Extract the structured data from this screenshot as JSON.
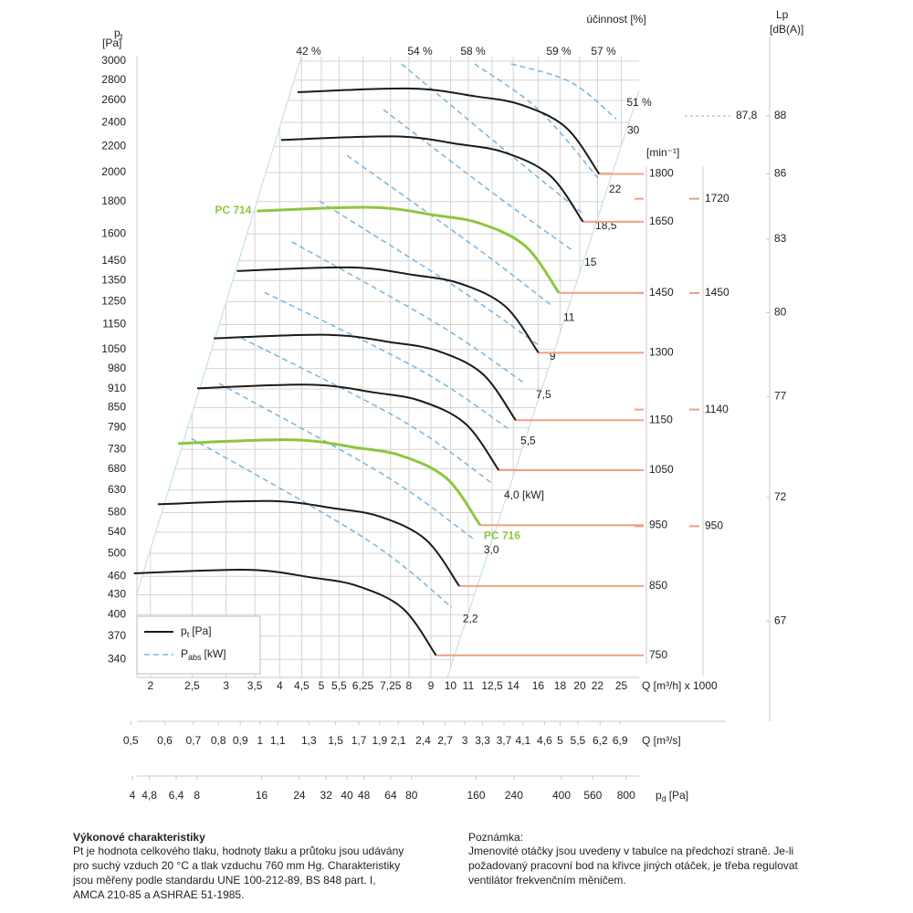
{
  "chart_data": {
    "type": "line",
    "y_label": {
      "symbol": "p",
      "sub": "t",
      "unit": "[Pa]"
    },
    "log_scale": true,
    "grid": true,
    "ylim": [
      310,
      3050
    ],
    "yticks": [
      3000,
      2800,
      2600,
      2400,
      2200,
      2000,
      1800,
      1600,
      1450,
      1350,
      1250,
      1150,
      1050,
      980,
      910,
      850,
      790,
      730,
      680,
      630,
      580,
      540,
      500,
      460,
      430,
      400,
      370,
      340
    ],
    "xlim": [
      1.86,
      27.5
    ],
    "x_label": "Q [m³/h] x 1000",
    "xticks": [
      2,
      {
        "value": 2.5,
        "label": "2,5"
      },
      3,
      {
        "value": 3.5,
        "label": "3,5"
      },
      4,
      {
        "value": 4.5,
        "label": "4,5"
      },
      5,
      {
        "value": 5.5,
        "label": "5,5"
      },
      {
        "value": 6.25,
        "label": "6,25"
      },
      {
        "value": 7.25,
        "label": "7,25"
      },
      8,
      9,
      10,
      11,
      {
        "value": 12.5,
        "label": "12,5"
      },
      14,
      16,
      18,
      20,
      22,
      25
    ],
    "x2_label": "Q [m³/s]",
    "x2lim": [
      0.517,
      7.64
    ],
    "x2ticks": [
      {
        "value": 0.5,
        "label": "0,5"
      },
      {
        "value": 0.6,
        "label": "0,6"
      },
      {
        "value": 0.7,
        "label": "0,7"
      },
      {
        "value": 0.8,
        "label": "0,8"
      },
      {
        "value": 0.9,
        "label": "0,9"
      },
      1,
      {
        "value": 1.1,
        "label": "1,1"
      },
      {
        "value": 1.3,
        "label": "1,3"
      },
      {
        "value": 1.5,
        "label": "1,5"
      },
      {
        "value": 1.7,
        "label": "1,7"
      },
      {
        "value": 1.9,
        "label": "1,9"
      },
      {
        "value": 2.1,
        "label": "2,1"
      },
      {
        "value": 2.4,
        "label": "2,4"
      },
      {
        "value": 2.7,
        "label": "2,7"
      },
      3,
      {
        "value": 3.3,
        "label": "3,3"
      },
      {
        "value": 3.7,
        "label": "3,7"
      },
      {
        "value": 4.1,
        "label": "4,1"
      },
      {
        "value": 4.6,
        "label": "4,6"
      },
      5,
      {
        "value": 5.5,
        "label": "5,5"
      },
      {
        "value": 6.2,
        "label": "6,2"
      },
      {
        "value": 6.9,
        "label": "6,9"
      }
    ],
    "x3_label": {
      "symbol": "p",
      "sub": "d",
      "unit": "[Pa]"
    },
    "x3lim": [
      4.2,
      920
    ],
    "x3ticks": [
      4,
      {
        "value": 4.8,
        "label": "4,8"
      },
      {
        "value": 6.4,
        "label": "6,4"
      },
      8,
      16,
      24,
      32,
      40,
      48,
      64,
      80,
      160,
      240,
      400,
      560,
      800
    ],
    "series": [
      {
        "name": "1800",
        "color": "#1a1a1a",
        "x": [
          4.4,
          8.1,
          11.4,
          14.6,
          18.6,
          22.2
        ],
        "values": [
          2680,
          2715,
          2640,
          2560,
          2355,
          1990
        ]
      },
      {
        "name": "1650",
        "color": "#1a1a1a",
        "x": [
          4.03,
          7.43,
          10.45,
          13.38,
          17.05,
          20.35
        ],
        "values": [
          2252,
          2281,
          2218,
          2151,
          1979,
          1672
        ]
      },
      {
        "name": "1450",
        "label": "PC 714",
        "color": "#8dc63f",
        "x": [
          3.54,
          6.53,
          9.18,
          11.76,
          14.98,
          17.88
        ],
        "values": [
          1739,
          1762,
          1713,
          1661,
          1528,
          1291
        ]
      },
      {
        "name": "1300",
        "color": "#1a1a1a",
        "x": [
          3.18,
          5.85,
          8.23,
          10.54,
          13.43,
          16.03
        ],
        "values": [
          1398,
          1416,
          1377,
          1335,
          1228,
          1038
        ]
      },
      {
        "name": "1150",
        "color": "#1a1a1a",
        "x": [
          2.81,
          5.18,
          7.28,
          9.33,
          11.88,
          14.18
        ],
        "values": [
          1094,
          1108,
          1078,
          1045,
          961,
          812
        ]
      },
      {
        "name": "1050",
        "color": "#1a1a1a",
        "x": [
          2.57,
          4.72,
          6.65,
          8.52,
          10.85,
          12.95
        ],
        "values": [
          912,
          924,
          898,
          871,
          801,
          677
        ]
      },
      {
        "name": "950",
        "label": "PC 716",
        "color": "#8dc63f",
        "x": [
          2.32,
          4.28,
          6.02,
          7.71,
          9.82,
          11.72
        ],
        "values": [
          746,
          756,
          735,
          713,
          656,
          554
        ]
      },
      {
        "name": "850",
        "color": "#1a1a1a",
        "x": [
          2.08,
          3.82,
          5.38,
          6.89,
          8.78,
          10.48
        ],
        "values": [
          598,
          605,
          589,
          571,
          525,
          444
        ]
      },
      {
        "name": "750",
        "color": "#1a1a1a",
        "x": [
          1.83,
          3.38,
          4.75,
          6.08,
          7.75,
          9.25
        ],
        "values": [
          465,
          471,
          458,
          444,
          409,
          345
        ]
      }
    ],
    "power_curves": [
      {
        "name": "30",
        "color": "#7fb8e0",
        "x": [
          13.85,
          19.04,
          24.33
        ],
        "values": [
          2970,
          2780,
          2431
        ]
      },
      {
        "name": "22",
        "color": "#7fb8e0",
        "x": [
          11.38,
          16.04,
          22.06
        ],
        "values": [
          2970,
          2514,
          1960
        ]
      },
      {
        "name": "18,5",
        "color": "#7fb8e0",
        "x": [
          7.69,
          13.85,
          20.5
        ],
        "values": [
          2970,
          2128,
          1716
        ]
      },
      {
        "name": "15",
        "color": "#7fb8e0",
        "x": [
          6.98,
          12.87,
          19.33
        ],
        "values": [
          2514,
          1833,
          1503
        ]
      },
      {
        "name": "11",
        "color": "#7fb8e0",
        "x": [
          5.74,
          11.38,
          17.27
        ],
        "values": [
          2128,
          1528,
          1230
        ]
      },
      {
        "name": "9",
        "color": "#7fb8e0",
        "x": [
          4.95,
          10.33,
          16.04
        ],
        "values": [
          1803,
          1316,
          1067
        ]
      },
      {
        "name": "7,5",
        "color": "#7fb8e0",
        "x": [
          4.27,
          9.36,
          14.91
        ],
        "values": [
          1554,
          1151,
          928
        ]
      },
      {
        "name": "5,5",
        "color": "#7fb8e0",
        "x": [
          3.69,
          8.49,
          13.72
        ],
        "values": [
          1293,
          975,
          785
        ]
      },
      {
        "name": "4,0 [kW]",
        "color": "#7fb8e0",
        "x": [
          3.26,
          7.69,
          12.56
        ],
        "values": [
          1095,
          812,
          644
        ]
      },
      {
        "name": "3,0",
        "color": "#7fb8e0",
        "x": [
          2.89,
          6.98,
          11.27
        ],
        "values": [
          928,
          666,
          528
        ]
      },
      {
        "name": "2,2",
        "color": "#7fb8e0",
        "x": [
          2.49,
          6.32,
          10.07
        ],
        "values": [
          760,
          528,
          411
        ]
      }
    ],
    "efficiency_title": "účinnost [%]",
    "efficiency_labels": [
      "42 %",
      "54 %",
      "58 %",
      "59 %",
      "57 %",
      "51 %"
    ],
    "rpm_unit": "[min⁻¹]",
    "rpm2": [
      {
        "value": 1720,
        "pt": 1818
      },
      {
        "value": 1450,
        "pt": 1290
      },
      {
        "value": 1140,
        "pt": 844
      },
      {
        "value": 950,
        "pt": 552
      }
    ],
    "lp": {
      "label": "Lp",
      "unit": "[dB(A)]",
      "ticks": [
        {
          "value": 88,
          "pt": 2457
        },
        {
          "value": 86,
          "pt": 1990
        },
        {
          "value": 83,
          "pt": 1570
        },
        {
          "value": 80,
          "pt": 1201
        },
        {
          "value": 77,
          "pt": 885
        },
        {
          "value": 72,
          "pt": 613
        },
        {
          "value": 67,
          "pt": 391
        }
      ],
      "marker": {
        "value": 87.8,
        "label": "87,8",
        "pt": 2457
      }
    },
    "legend": [
      {
        "symbol": "p",
        "sub": "t",
        "unit": "[Pa]"
      },
      {
        "symbol": "P",
        "sub": "abs",
        "unit": "[kW]"
      }
    ]
  },
  "notes": {
    "left": {
      "title": "Výkonové charakteristiky",
      "lines": [
        "Pt je hodnota celkového tlaku, hodnoty tlaku a průtoku jsou udávány",
        "pro suchý vzduch 20 °C a tlak vzduchu 760 mm Hg. Charakteristiky",
        "jsou měřeny podle standardu UNE 100-212-89, BS 848 part. I,",
        "AMCA 210-85 a ASHRAE 51-1985."
      ]
    },
    "right": {
      "title": "Poznámka:",
      "lines": [
        "Jmenovité otáčky jsou uvedeny v tabulce na předchozí straně. Je-li",
        "požadovaný pracovní bod na křivce jiných otáček, je třeba regulovat",
        "ventilátor frekvenčním měničem."
      ]
    }
  }
}
